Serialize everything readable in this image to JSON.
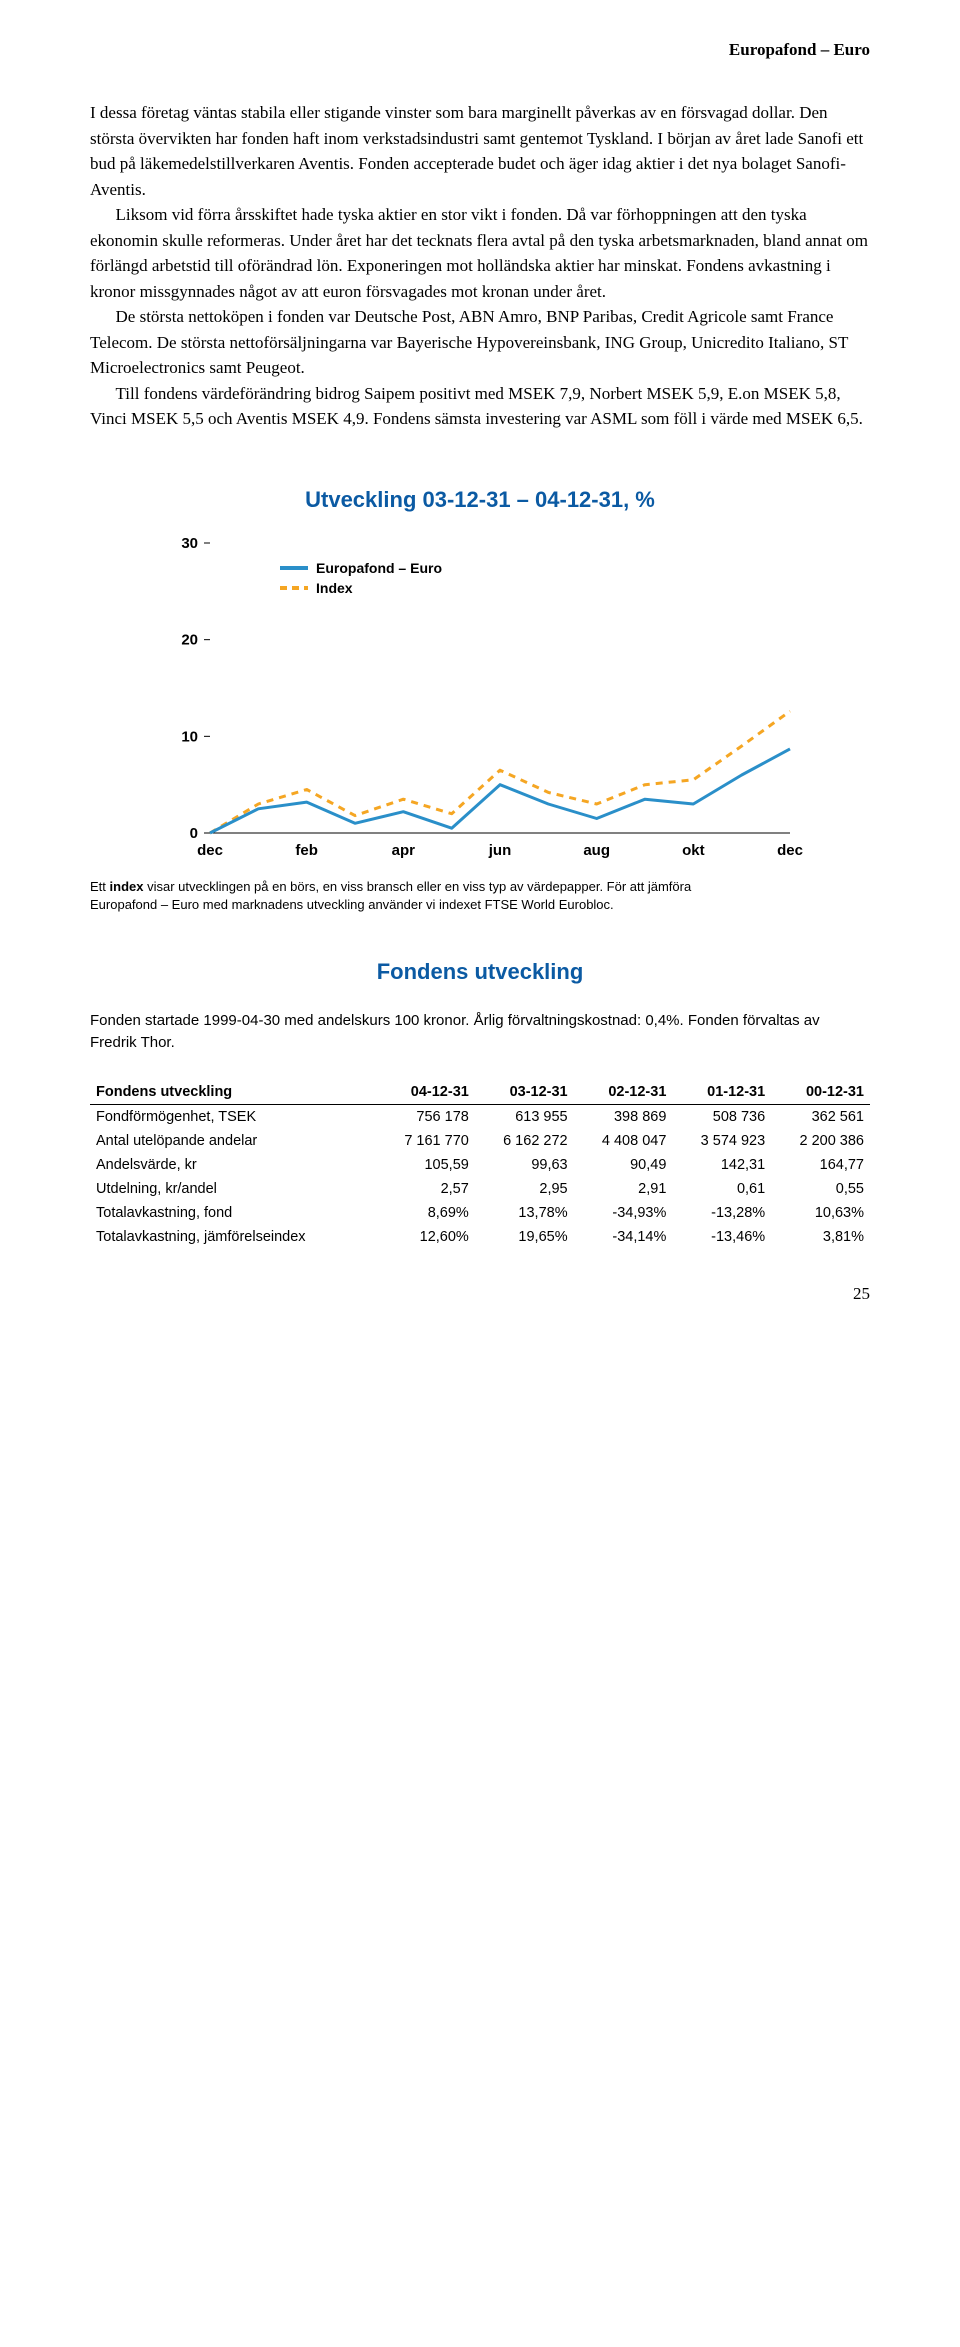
{
  "header": {
    "title": "Europafond – Euro"
  },
  "paragraphs": [
    "I dessa företag väntas stabila eller stigande vinster som bara marginellt påverkas av en försvagad dollar. Den största övervikten har fonden haft inom verkstadsindustri samt gentemot Tyskland. I början av året lade Sanofi ett bud på läkemedelstillverkaren Aventis. Fonden accepterade budet och äger idag aktier i det nya bolaget Sanofi-Aventis.",
    "Liksom vid förra årsskiftet hade tyska aktier en stor vikt i fonden. Då var förhoppningen att den tyska ekonomin skulle reformeras. Under året har det tecknats flera avtal på den tyska arbetsmarknaden, bland annat om förlängd arbetstid till oförändrad lön. Exponeringen mot holländska aktier har minskat. Fondens avkastning i kronor missgynnades något av att euron försvagades mot kronan under året.",
    "De största nettoköpen i fonden var Deutsche Post, ABN Amro, BNP Paribas, Credit Agricole samt France Telecom. De största nettoförsäljningarna var Bayerische Hypovereinsbank, ING Group, Unicredito Italiano, ST Microelectronics samt Peugeot.",
    "Till fondens värdeförändring bidrog Saipem positivt med MSEK 7,9, Norbert MSEK 5,9, E.on MSEK 5,8, Vinci MSEK 5,5 och Aventis MSEK 4,9. Fondens sämsta investering var ASML som föll i värde med MSEK 6,5."
  ],
  "chart": {
    "title": "Utveckling 03-12-31 – 04-12-31, %",
    "title_color": "#0b5aa3",
    "legend": [
      {
        "label": "Europafond – Euro",
        "color": "#2a8fc9",
        "dash": false
      },
      {
        "label": "Index",
        "color": "#f5a623",
        "dash": true
      }
    ],
    "x_labels": [
      "dec",
      "feb",
      "apr",
      "jun",
      "aug",
      "okt",
      "dec"
    ],
    "y_ticks": [
      0,
      10,
      20,
      30
    ],
    "ylim": [
      0,
      30
    ],
    "line_width": 3,
    "background_color": "#ffffff",
    "axis_color": "#000000",
    "tick_font_size": 15,
    "tick_font_weight": "bold",
    "series": {
      "fund": [
        0,
        2.5,
        3.2,
        1.0,
        2.2,
        0.5,
        5.0,
        3.0,
        1.5,
        3.5,
        3.0,
        6.0,
        8.7
      ],
      "index": [
        0,
        3.0,
        4.5,
        1.8,
        3.5,
        2.0,
        6.5,
        4.2,
        3.0,
        5.0,
        5.5,
        9.0,
        12.6
      ]
    },
    "caption_lines": [
      "Ett index visar utvecklingen på en börs, en viss bransch eller en viss typ av värdepapper. För att jämföra",
      "Europafond – Euro med marknadens utveckling använder vi indexet FTSE World Eurobloc."
    ]
  },
  "development": {
    "title": "Fondens utveckling",
    "title_color": "#0b5aa3",
    "meta": "Fonden startade 1999-04-30 med andelskurs 100 kronor. Årlig förvaltningskostnad: 0,4%. Fonden förvaltas av Fredrik Thor.",
    "columns": [
      "Fondens utveckling",
      "04-12-31",
      "03-12-31",
      "02-12-31",
      "01-12-31",
      "00-12-31"
    ],
    "rows": [
      [
        "Fondförmögenhet, TSEK",
        "756 178",
        "613 955",
        "398 869",
        "508 736",
        "362 561"
      ],
      [
        "Antal utelöpande andelar",
        "7 161 770",
        "6 162 272",
        "4 408 047",
        "3 574 923",
        "2 200 386"
      ],
      [
        "Andelsvärde, kr",
        "105,59",
        "99,63",
        "90,49",
        "142,31",
        "164,77"
      ],
      [
        "Utdelning, kr/andel",
        "2,57",
        "2,95",
        "2,91",
        "0,61",
        "0,55"
      ],
      [
        "Totalavkastning, fond",
        "8,69%",
        "13,78%",
        "-34,93%",
        "-13,28%",
        "10,63%"
      ],
      [
        "Totalavkastning, jämförelseindex",
        "12,60%",
        "19,65%",
        "-34,14%",
        "-13,46%",
        "3,81%"
      ]
    ]
  },
  "page_number": "25"
}
